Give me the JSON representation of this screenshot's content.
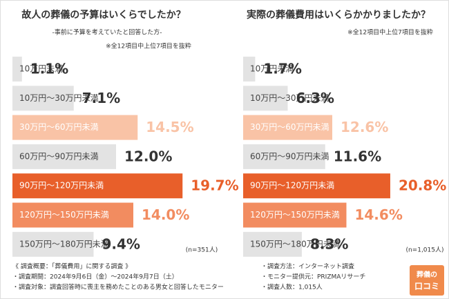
{
  "chart_data": [
    {
      "type": "bar",
      "title": "故人の葬儀の予算はいくらでしたか？",
      "subtitle": "-事前に予算を考えていたと回答した方-",
      "note": "※全12項目中上位7項目を抜粋",
      "sample": "(n=351人)",
      "categories": [
        "10万円未満",
        "10万円～30万円未満",
        "30万円～60万円未満",
        "60万円～90万円未満",
        "90万円～120万円未満",
        "120万円～150万円未満",
        "150万円～180万円未満"
      ],
      "values": [
        1.1,
        7.1,
        14.5,
        12.0,
        19.7,
        14.0,
        9.4
      ],
      "value_labels": [
        "1.1%",
        "7.1%",
        "14.5%",
        "12.0%",
        "19.7%",
        "14.0%",
        "9.4%"
      ],
      "colors": [
        "#e3e3e3",
        "#e3e3e3",
        "#f9c3a6",
        "#e3e3e3",
        "#e85f2a",
        "#f28c60",
        "#e3e3e3"
      ],
      "value_colors": [
        "#333333",
        "#333333",
        "#f9c3a6",
        "#333333",
        "#e85f2a",
        "#f28c60",
        "#333333"
      ],
      "xlim": [
        0,
        20
      ]
    },
    {
      "type": "bar",
      "title": "実際の葬儀費用はいくらかかりましたか？",
      "note": "※全12項目中上位7項目を抜粋",
      "sample": "(n=1,015人)",
      "categories": [
        "10万円未満",
        "10万円～30万円未満",
        "30万円～60万円未満",
        "60万円～90万円未満",
        "90万円～120万円未満",
        "120万円～150万円未満",
        "150万円～180万円未満"
      ],
      "values": [
        1.7,
        6.3,
        12.6,
        11.6,
        20.8,
        14.6,
        8.3
      ],
      "value_labels": [
        "1.7%",
        "6.3%",
        "12.6%",
        "11.6%",
        "20.8%",
        "14.6%",
        "8.3%"
      ],
      "colors": [
        "#e3e3e3",
        "#e3e3e3",
        "#f9c3a6",
        "#e3e3e3",
        "#e85f2a",
        "#f28c60",
        "#e3e3e3"
      ],
      "value_colors": [
        "#333333",
        "#333333",
        "#f9c3a6",
        "#333333",
        "#e85f2a",
        "#f28c60",
        "#333333"
      ],
      "xlim": [
        0,
        21
      ]
    }
  ],
  "footer": {
    "left": [
      "《 調査概要：「葬儀費用」に関する調査 》",
      "・調査期間：2024年9月6日（金）～2024年9月7日（土）",
      "・調査対象：調査回答時に喪主を務めたことのある男女と回答したモニター"
    ],
    "right": [
      "・調査方法：インターネット調査",
      "・モニター提供元：PRIZMAリサーチ",
      "・調査人数：1,015人"
    ],
    "logo": [
      "葬儀の",
      "口コミ"
    ]
  }
}
